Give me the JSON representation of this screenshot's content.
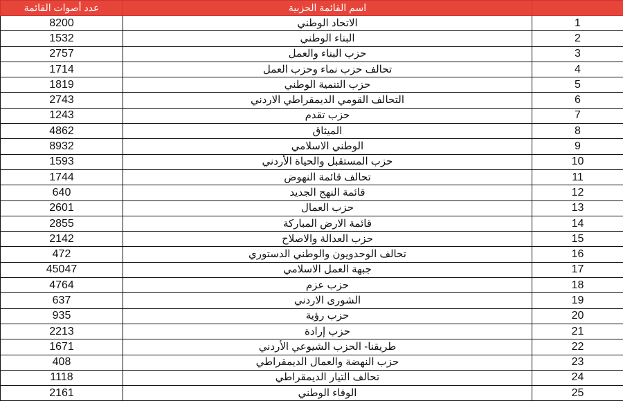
{
  "header": {
    "votes": "عدد أصوات القائمة",
    "name": "اسم القائمة الحزبية",
    "rank": ""
  },
  "colors": {
    "header_bg": "#e8453a",
    "header_text": "#ffffff"
  },
  "rows": [
    {
      "rank": "1",
      "name": "الاتحاد الوطني",
      "votes": "8200"
    },
    {
      "rank": "2",
      "name": "البناء الوطني",
      "votes": "1532"
    },
    {
      "rank": "3",
      "name": "حزب البناء والعمل",
      "votes": "2757"
    },
    {
      "rank": "4",
      "name": "تحالف حزب نماء وحزب العمل",
      "votes": "1714"
    },
    {
      "rank": "5",
      "name": "حزب التنمية الوطني",
      "votes": "1819"
    },
    {
      "rank": "6",
      "name": "التحالف القومي الديمقراطي الاردني",
      "votes": "2743"
    },
    {
      "rank": "7",
      "name": "حزب تقدم",
      "votes": "1243"
    },
    {
      "rank": "8",
      "name": "الميثاق",
      "votes": "4862"
    },
    {
      "rank": "9",
      "name": "الوطني الاسلامي",
      "votes": "8932"
    },
    {
      "rank": "10",
      "name": "حزب المستقبل والحياة الأردني",
      "votes": "1593"
    },
    {
      "rank": "11",
      "name": "تحالف قائمة النهوض",
      "votes": "1744"
    },
    {
      "rank": "12",
      "name": "قائمة النهج الجديد",
      "votes": "640"
    },
    {
      "rank": "13",
      "name": "حزب العمال",
      "votes": "2601"
    },
    {
      "rank": "14",
      "name": "قائمة الارض المباركة",
      "votes": "2855"
    },
    {
      "rank": "15",
      "name": "حزب العدالة والاصلاح",
      "votes": "2142"
    },
    {
      "rank": "16",
      "name": "تحالف الوحدويون والوطني الدستوري",
      "votes": "472"
    },
    {
      "rank": "17",
      "name": "جبهة العمل الاسلامي",
      "votes": "45047"
    },
    {
      "rank": "18",
      "name": "حزب عزم",
      "votes": "4764"
    },
    {
      "rank": "19",
      "name": "الشورى الاردني",
      "votes": "637"
    },
    {
      "rank": "20",
      "name": "حزب رؤية",
      "votes": "935"
    },
    {
      "rank": "21",
      "name": "حزب إرادة",
      "votes": "2213"
    },
    {
      "rank": "22",
      "name": "طريقنا- الحزب الشيوعي الأردني",
      "votes": "1671"
    },
    {
      "rank": "23",
      "name": "حزب النهضة والعمال الديمقراطي",
      "votes": "408"
    },
    {
      "rank": "24",
      "name": "تحالف التيار الديمقراطي",
      "votes": "1118"
    },
    {
      "rank": "25",
      "name": "الوفاء الوطني",
      "votes": "2161"
    }
  ]
}
